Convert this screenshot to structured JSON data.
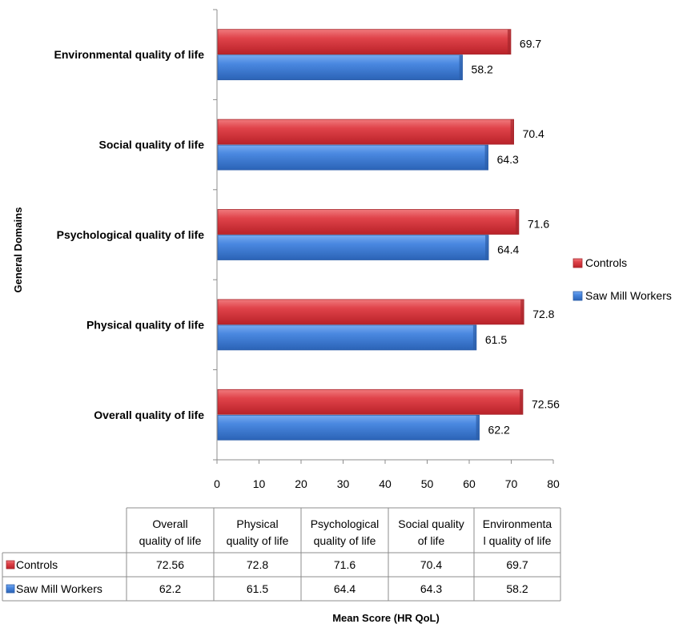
{
  "chart_data": {
    "type": "bar",
    "orientation": "horizontal",
    "categories": [
      "Overall quality of life",
      "Physical quality of life",
      "Psychological quality of life",
      "Social quality of life",
      "Environmental quality of life"
    ],
    "series": [
      {
        "name": "Controls",
        "values": [
          72.56,
          72.8,
          71.6,
          70.4,
          69.7
        ],
        "color": "#d9333a"
      },
      {
        "name": "Saw Mill Workers",
        "values": [
          62.2,
          61.5,
          64.4,
          64.3,
          58.2
        ],
        "color": "#3d7fd6"
      }
    ],
    "data_labels": {
      "Controls": [
        "72.56",
        "72.8",
        "71.6",
        "70.4",
        "69.7"
      ],
      "Saw Mill Workers": [
        "62.2",
        "61.5",
        "64.4",
        "64.3",
        "58.2"
      ]
    },
    "xlim": [
      0,
      80
    ],
    "xticks": [
      "0",
      "10",
      "20",
      "30",
      "40",
      "50",
      "60",
      "70",
      "80"
    ],
    "xlabel": "Mean Score (HR QoL)",
    "ylabel": "General Domains",
    "legend_position": "right",
    "grid": false,
    "data_table": {
      "headers": [
        [
          "Overall",
          "quality of life"
        ],
        [
          "Physical",
          "quality of life"
        ],
        [
          "Psychological",
          "quality of life"
        ],
        [
          "Social quality",
          "of life"
        ],
        [
          "Environmenta",
          "l quality of life"
        ]
      ],
      "rows": [
        {
          "series": "Controls",
          "values": [
            "72.56",
            "72.8",
            "71.6",
            "70.4",
            "69.7"
          ]
        },
        {
          "series": "Saw Mill Workers",
          "values": [
            "62.2",
            "61.5",
            "64.4",
            "64.3",
            "58.2"
          ]
        }
      ]
    }
  }
}
